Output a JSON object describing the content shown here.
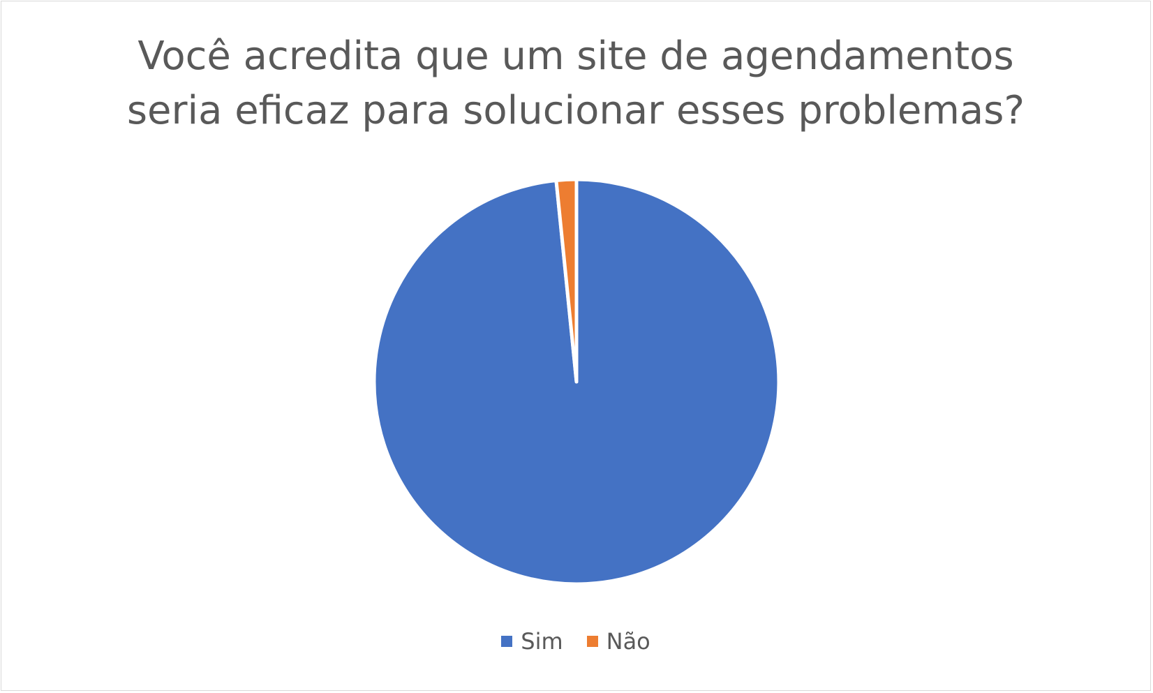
{
  "chart_data": {
    "type": "pie",
    "title_lines": [
      "Você acredita que um site de agendamentos",
      "seria eficaz para solucionar esses problemas?"
    ],
    "categories": [
      "Sim",
      "Não"
    ],
    "values": [
      98.4,
      1.6
    ],
    "colors": [
      "#4472C4",
      "#ED7D31"
    ],
    "start_angle_deg": 0,
    "direction": "clockwise",
    "legend_position": "bottom"
  }
}
